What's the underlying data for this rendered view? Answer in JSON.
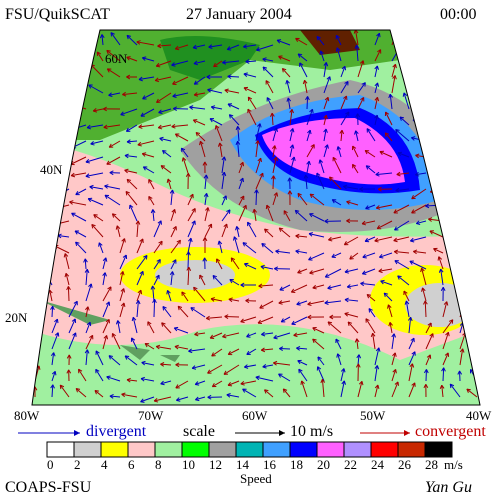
{
  "header": {
    "source": "FSU/QuikSCAT",
    "date": "27 January 2004",
    "time": "00:00"
  },
  "map": {
    "lat_labels": [
      "60N",
      "40N",
      "20N"
    ],
    "lon_labels": [
      "80W",
      "70W",
      "60W",
      "50W",
      "40W"
    ]
  },
  "legend": {
    "divergent": "divergent",
    "scale": "scale",
    "scale_value": "10 m/s",
    "convergent": "convergent"
  },
  "colorbar": {
    "labels": [
      "0",
      "2",
      "4",
      "6",
      "8",
      "10",
      "12",
      "14",
      "16",
      "18",
      "20",
      "22",
      "24",
      "26",
      "28"
    ],
    "unit": "m/s",
    "title": "Speed",
    "colors": [
      "#ffffff",
      "#d0d0d0",
      "#ffff00",
      "#ffc8c8",
      "#a0f0a0",
      "#00ff00",
      "#a0a0a0",
      "#00b4b4",
      "#40a0ff",
      "#0000ff",
      "#ff60ff",
      "#b090ff",
      "#ff0000",
      "#c82800",
      "#000000"
    ]
  },
  "footer": {
    "institution": "COAPS-FSU",
    "author": "Yan Gu"
  }
}
